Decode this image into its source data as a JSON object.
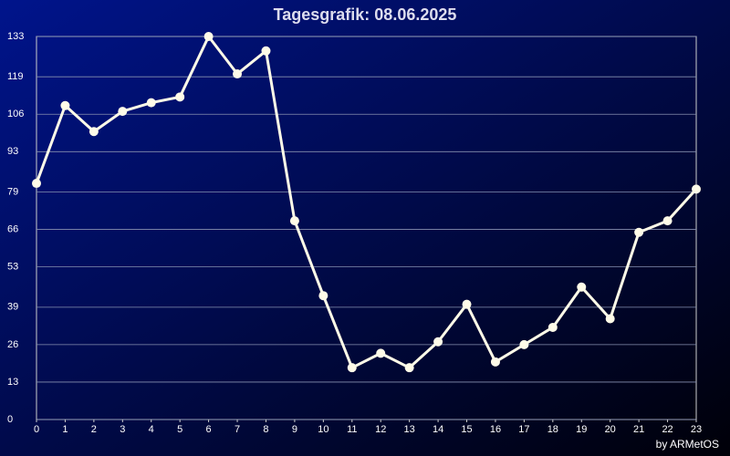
{
  "chart_data": {
    "type": "line",
    "title": "Tagesgrafik: 08.06.2025",
    "credit": "by ARMetOS",
    "x": [
      0,
      1,
      2,
      3,
      4,
      5,
      6,
      7,
      8,
      9,
      10,
      11,
      12,
      13,
      14,
      15,
      16,
      17,
      18,
      19,
      20,
      21,
      22,
      23
    ],
    "series": [
      {
        "color": "#fffbe8",
        "values": [
          82,
          109,
          100,
          107,
          110,
          112,
          133,
          120,
          128,
          69,
          43,
          18,
          23,
          18,
          27,
          40,
          20,
          26,
          32,
          46,
          35,
          65,
          69,
          80
        ]
      }
    ],
    "xlim": [
      0,
      23
    ],
    "xticks": [
      0,
      1,
      2,
      3,
      4,
      5,
      6,
      7,
      8,
      9,
      10,
      11,
      12,
      13,
      14,
      15,
      16,
      17,
      18,
      19,
      20,
      21,
      22,
      23
    ],
    "ylim": [
      0,
      133
    ],
    "yticks": [
      0,
      13,
      26,
      39,
      53,
      66,
      79,
      93,
      106,
      119,
      133
    ],
    "grid": true
  }
}
